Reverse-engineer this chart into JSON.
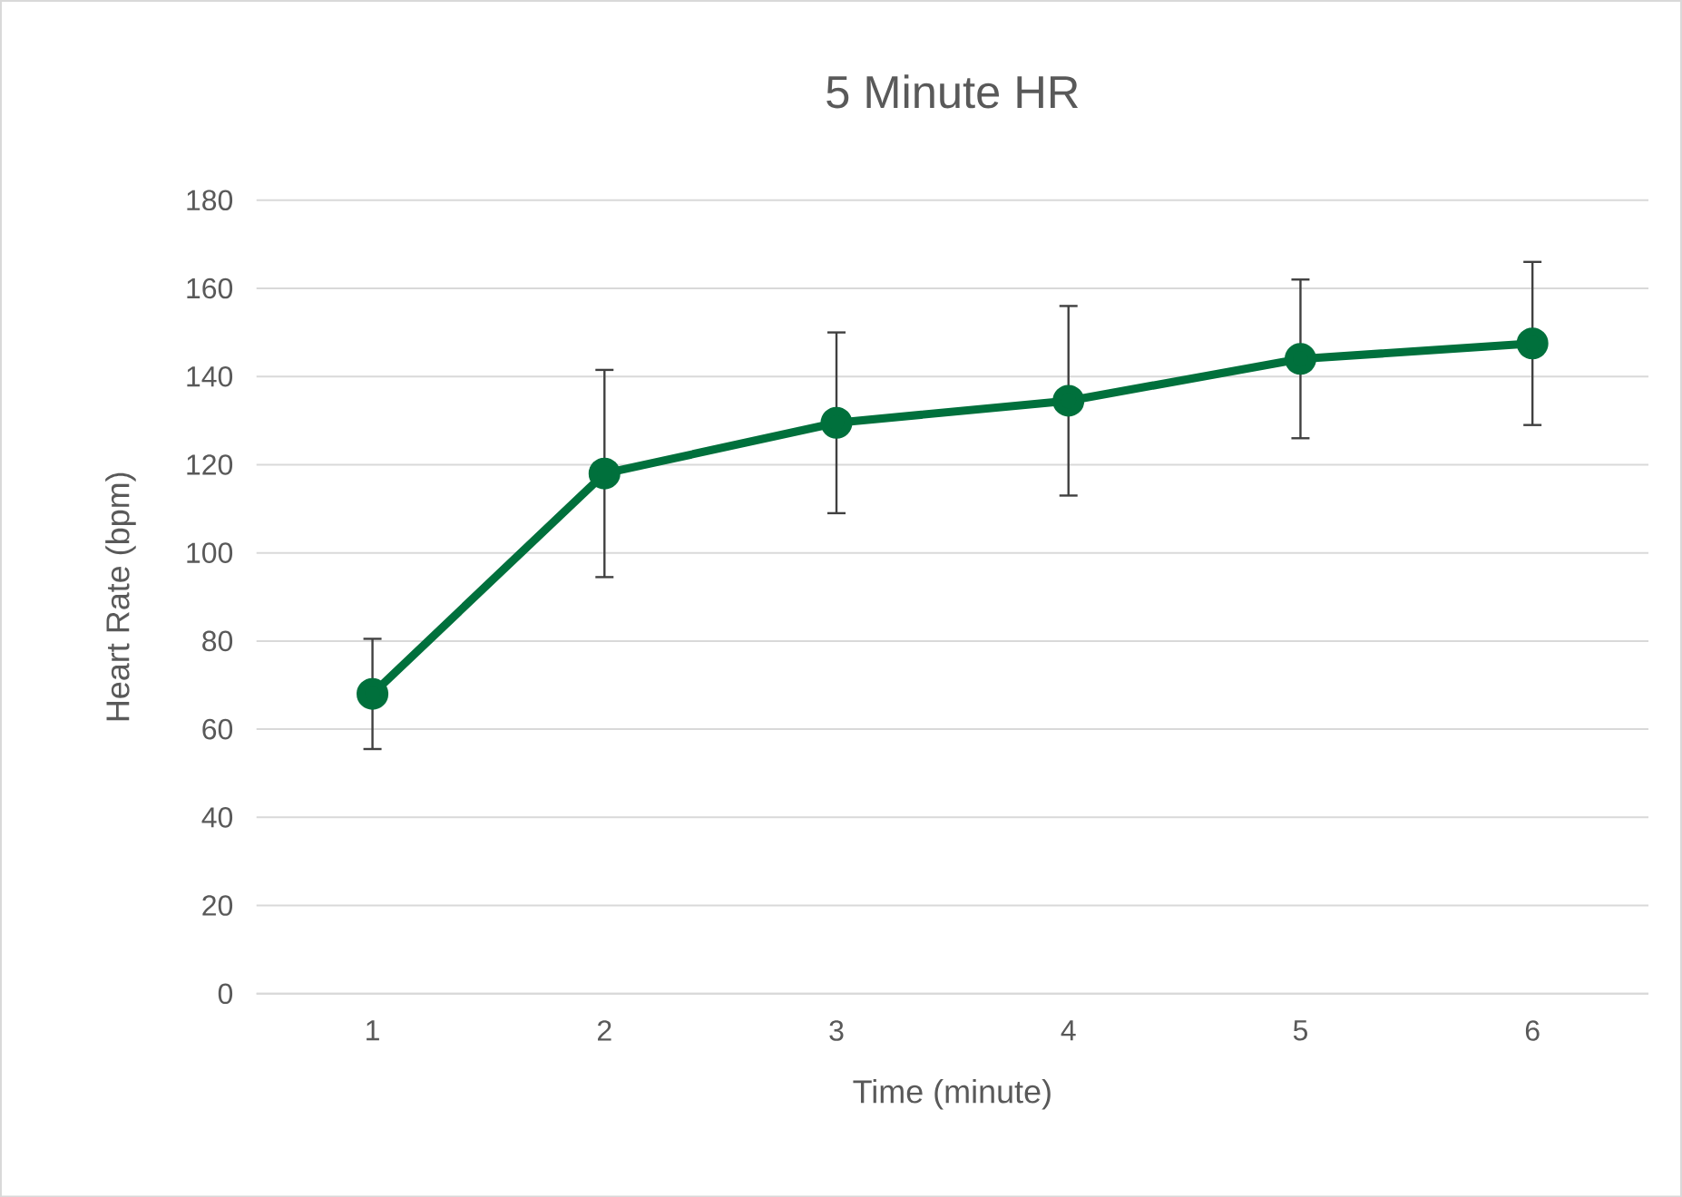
{
  "chart_data": {
    "type": "line",
    "title": "5 Minute HR",
    "xlabel": "Time (minute)",
    "ylabel": "Heart Rate (bpm)",
    "categories": [
      "1",
      "2",
      "3",
      "4",
      "5",
      "6"
    ],
    "series": [
      {
        "color": "#00703c",
        "values": [
          68,
          118,
          129.5,
          134.5,
          144,
          147.5
        ],
        "errors": [
          12.5,
          23.5,
          20.5,
          21.5,
          18,
          18.5
        ]
      }
    ],
    "ylim": [
      0,
      180
    ],
    "yticks": [
      0,
      20,
      40,
      60,
      80,
      100,
      120,
      140,
      160,
      180
    ],
    "grid": "y",
    "marker": "circle",
    "line_style": "solid"
  }
}
